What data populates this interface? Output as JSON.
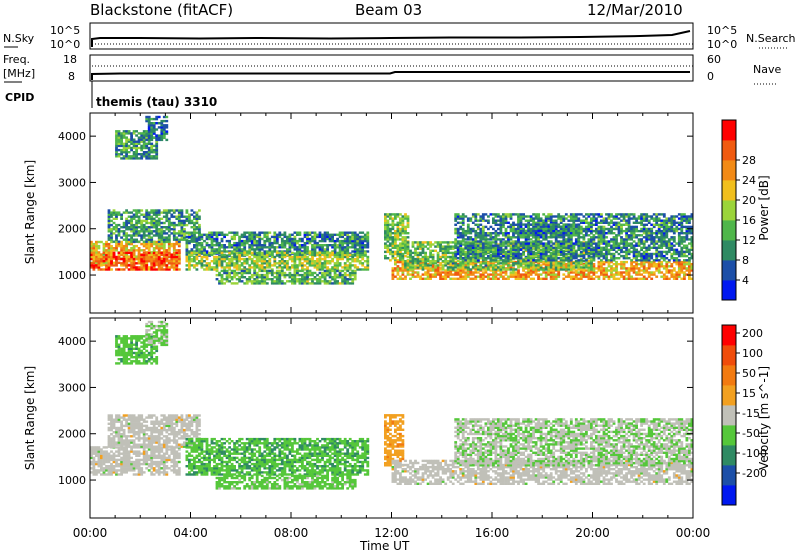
{
  "header": {
    "station": "Blackstone (fitACF)",
    "beam": "Beam 03",
    "date": "12/Mar/2010"
  },
  "noise_panel": {
    "left_label": "N.Sky",
    "left_ticks": [
      "10^5",
      "10^0"
    ],
    "right_ticks": [
      "10^5",
      "10^0"
    ],
    "right_label": "N.Search"
  },
  "freq_panel": {
    "left_label_1": "Freq.",
    "left_label_2": "[MHz]",
    "left_ticks": [
      "18",
      "8"
    ],
    "right_ticks": [
      "60",
      "0"
    ],
    "right_label": "Nave"
  },
  "cpid": {
    "label": "CPID",
    "value": "themis (tau) 3310"
  },
  "x_axis": {
    "label": "Time UT",
    "ticks": [
      "00:00",
      "04:00",
      "08:00",
      "12:00",
      "16:00",
      "20:00",
      "00:00"
    ]
  },
  "colors": {
    "power_scale": [
      "#0018f0",
      "#1c4fa8",
      "#2f8a63",
      "#4fb64a",
      "#9bd43a",
      "#f1bf1d",
      "#f28a16",
      "#f05a10",
      "#ff0000"
    ],
    "velocity_scale": [
      "#0018f0",
      "#1c4fa8",
      "#2f8a63",
      "#55c73a",
      "#c0c0b8",
      "#f2a020",
      "#f27a10",
      "#f04c0a",
      "#ff0000"
    ]
  },
  "chart_data": [
    {
      "type": "heatmap",
      "title": "Power",
      "xlabel": "Time UT",
      "ylabel": "Slant Range [km]",
      "xlim_hours": [
        0,
        24
      ],
      "ylim": [
        180,
        4500
      ],
      "yticks": [
        "1000",
        "2000",
        "3000",
        "4000"
      ],
      "colorbar": {
        "label": "Power [dB]",
        "ticks": [
          "4",
          "8",
          "12",
          "16",
          "20",
          "24",
          "28"
        ],
        "range": [
          0,
          32
        ]
      },
      "regions": [
        {
          "t0": 0.0,
          "t1": 3.6,
          "r0": 1200,
          "r1": 1700,
          "value": 20
        },
        {
          "t0": 0.0,
          "t1": 3.6,
          "r0": 1100,
          "r1": 1500,
          "value": 26
        },
        {
          "t0": 0.7,
          "t1": 4.4,
          "r0": 1700,
          "r1": 2400,
          "value": 10
        },
        {
          "t0": 1.0,
          "t1": 2.7,
          "r0": 3500,
          "r1": 4100,
          "value": 10
        },
        {
          "t0": 2.2,
          "t1": 3.1,
          "r0": 3900,
          "r1": 4400,
          "value": 8
        },
        {
          "t0": 3.8,
          "t1": 11.0,
          "r0": 1400,
          "r1": 1900,
          "value": 9
        },
        {
          "t0": 3.8,
          "t1": 11.0,
          "r0": 1100,
          "r1": 1500,
          "value": 15
        },
        {
          "t0": 5.0,
          "t1": 10.5,
          "r0": 800,
          "r1": 1100,
          "value": 12
        },
        {
          "t0": 11.7,
          "t1": 12.6,
          "r0": 1300,
          "r1": 2300,
          "value": 14
        },
        {
          "t0": 12.0,
          "t1": 24.0,
          "r0": 900,
          "r1": 1300,
          "value": 22
        },
        {
          "t0": 12.5,
          "t1": 20.0,
          "r0": 1100,
          "r1": 1700,
          "value": 13
        },
        {
          "t0": 14.5,
          "t1": 24.0,
          "r0": 1300,
          "r1": 2300,
          "value": 9
        },
        {
          "t0": 17.0,
          "t1": 19.5,
          "r0": 1800,
          "r1": 2100,
          "value": 8
        }
      ]
    },
    {
      "type": "heatmap",
      "title": "Velocity",
      "xlabel": "Time UT",
      "ylabel": "Slant Range [km]",
      "xlim_hours": [
        0,
        24
      ],
      "ylim": [
        180,
        4500
      ],
      "yticks": [
        "1000",
        "2000",
        "3000",
        "4000"
      ],
      "colorbar": {
        "label": "Velocity [m s^-1]",
        "ticks": [
          "200",
          "100",
          "50",
          "15",
          "-15",
          "-50",
          "-100",
          "-200"
        ],
        "range": [
          -250,
          250
        ]
      },
      "regions": [
        {
          "t0": 0.0,
          "t1": 3.6,
          "r0": 1100,
          "r1": 1700,
          "value": 0
        },
        {
          "t0": 0.7,
          "t1": 4.4,
          "r0": 1700,
          "r1": 2400,
          "value": 0
        },
        {
          "t0": 1.0,
          "t1": 2.7,
          "r0": 3500,
          "r1": 4100,
          "value": -60
        },
        {
          "t0": 2.2,
          "t1": 3.1,
          "r0": 3900,
          "r1": 4400,
          "value": -30
        },
        {
          "t0": 3.8,
          "t1": 11.0,
          "r0": 1100,
          "r1": 1900,
          "value": -70
        },
        {
          "t0": 5.0,
          "t1": 10.5,
          "r0": 800,
          "r1": 1100,
          "value": -50
        },
        {
          "t0": 11.7,
          "t1": 12.4,
          "r0": 1300,
          "r1": 2400,
          "value": 60
        },
        {
          "t0": 12.0,
          "t1": 24.0,
          "r0": 900,
          "r1": 1400,
          "value": 0
        },
        {
          "t0": 14.5,
          "t1": 24.0,
          "r0": 1300,
          "r1": 2300,
          "value": -20
        }
      ]
    }
  ]
}
